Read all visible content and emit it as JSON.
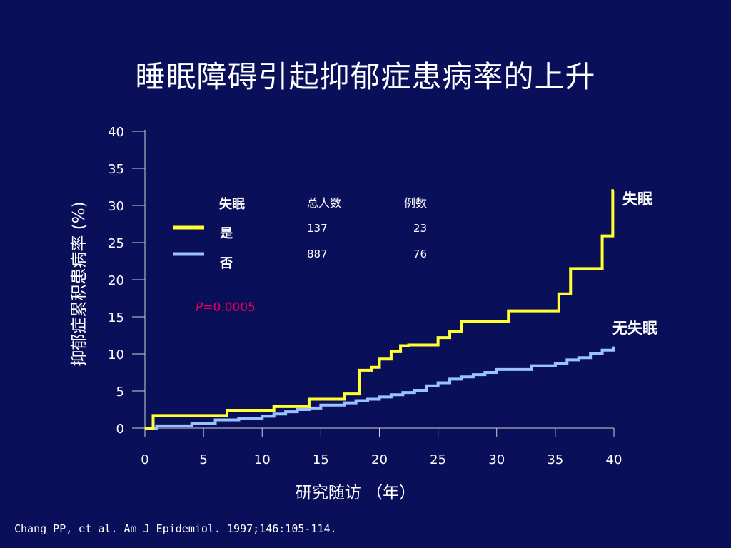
{
  "title": "睡眠障碍引起抑郁症患病率的上升",
  "citation": "Chang PP, et al. Am J Epidemiol. 1997;146:105-114.",
  "chart_data": {
    "type": "line",
    "step": true,
    "xlabel": "研究随访 （年）",
    "ylabel": "抑郁症累积患病率 (%)",
    "xlim": [
      0,
      40
    ],
    "ylim": [
      0,
      40
    ],
    "xticks": [
      0,
      5,
      10,
      15,
      20,
      25,
      30,
      35,
      40
    ],
    "yticks": [
      0,
      5,
      10,
      15,
      20,
      25,
      30,
      35,
      40
    ],
    "grid": false,
    "legend": {
      "placement": "top-left",
      "header": "失眠",
      "col_total": "总人数",
      "col_cases": "例数",
      "rows": [
        {
          "label": "是",
          "total": "137",
          "cases": "23",
          "color": "#ffff33"
        },
        {
          "label": "否",
          "total": "887",
          "cases": "76",
          "color": "#99c2ff"
        }
      ]
    },
    "annotation": {
      "text_p": "P",
      "text_rest": "=0.0005",
      "color": "#e8005a"
    },
    "series": [
      {
        "name": "失眠",
        "color": "#ffff33",
        "x": [
          0,
          0.7,
          7,
          11,
          14,
          17,
          18.3,
          19.3,
          20,
          21,
          21.8,
          22.5,
          25,
          26,
          27,
          31,
          35.3,
          36.3,
          39,
          39.9,
          40
        ],
        "y": [
          0,
          1.7,
          2.4,
          2.9,
          3.9,
          4.6,
          7.8,
          8.2,
          9.3,
          10.3,
          11.1,
          11.2,
          12.2,
          13.0,
          14.4,
          15.8,
          18.1,
          21.5,
          25.9,
          32.0,
          32.0
        ]
      },
      {
        "name": "无失眠",
        "color": "#99c2ff",
        "x": [
          0,
          1,
          4,
          6,
          8,
          10,
          11,
          12,
          13,
          14,
          15,
          17,
          18,
          19,
          20,
          21,
          22,
          23,
          24,
          25,
          26,
          27,
          28,
          29,
          30,
          33,
          35,
          36,
          37,
          38,
          39,
          40
        ],
        "y": [
          0,
          0.3,
          0.6,
          1.1,
          1.3,
          1.6,
          1.9,
          2.2,
          2.5,
          2.7,
          3.1,
          3.4,
          3.7,
          3.9,
          4.2,
          4.5,
          4.8,
          5.1,
          5.7,
          6.1,
          6.6,
          6.9,
          7.2,
          7.5,
          7.9,
          8.4,
          8.7,
          9.2,
          9.5,
          10.0,
          10.5,
          11.0
        ]
      }
    ]
  }
}
